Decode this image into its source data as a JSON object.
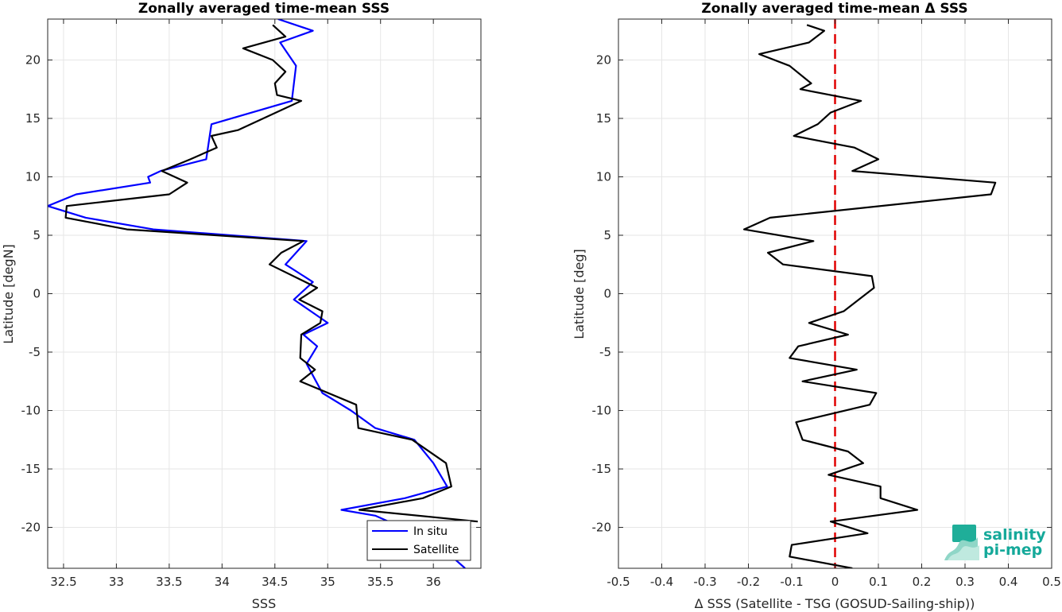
{
  "chart_data": [
    {
      "type": "line",
      "title": "Zonally averaged time-mean SSS",
      "xlabel": "SSS",
      "ylabel": "Latitude [degN]",
      "xlim": [
        32.35,
        36.45
      ],
      "ylim": [
        -23.5,
        23.5
      ],
      "xticks": [
        "32.5",
        "33",
        "33.5",
        "34",
        "34.5",
        "35",
        "35.5",
        "36"
      ],
      "xtick_values": [
        32.5,
        33,
        33.5,
        34,
        34.5,
        35,
        35.5,
        36
      ],
      "yticks": [
        "20",
        "15",
        "10",
        "5",
        "0",
        "-5",
        "-10",
        "-15",
        "-20"
      ],
      "ytick_values": [
        20,
        15,
        10,
        5,
        0,
        -5,
        -10,
        -15,
        -20
      ],
      "grid": true,
      "legend_position": "bottom-right",
      "series": [
        {
          "name": "In situ",
          "color": "#0000ff",
          "x": [
            34.53,
            34.86,
            34.55,
            34.7,
            34.66,
            33.9,
            33.85,
            33.42,
            33.3,
            33.32,
            32.62,
            32.35,
            32.71,
            33.35,
            34.8,
            34.6,
            34.86,
            34.68,
            34.92,
            35.0,
            34.77,
            34.9,
            34.8,
            34.89,
            34.95,
            35.22,
            35.45,
            35.82,
            36.0,
            36.13,
            35.73,
            35.13,
            35.45,
            35.7,
            36.05,
            36.3
          ],
          "y": [
            23.5,
            22.5,
            21.5,
            19.5,
            16.5,
            14.5,
            11.5,
            10.5,
            10.0,
            9.5,
            8.5,
            7.5,
            6.5,
            5.5,
            4.5,
            2.5,
            1.0,
            -0.5,
            -2.0,
            -2.5,
            -3.5,
            -4.5,
            -6.0,
            -7.5,
            -8.5,
            -10.0,
            -11.5,
            -12.5,
            -14.5,
            -16.5,
            -17.5,
            -18.5,
            -19.0,
            -20.0,
            -21.5,
            -23.5
          ]
        },
        {
          "name": "Satellite",
          "color": "#000000",
          "x": [
            34.48,
            34.6,
            34.2,
            34.48,
            34.6,
            34.5,
            34.52,
            34.75,
            34.15,
            33.9,
            33.95,
            33.7,
            33.43,
            33.67,
            33.5,
            32.53,
            32.52,
            33.1,
            34.77,
            34.56,
            34.45,
            34.9,
            34.73,
            34.95,
            34.93,
            34.75,
            34.74,
            34.88,
            34.74,
            35.27,
            35.29,
            35.8,
            36.12,
            36.17,
            35.9,
            35.3,
            36.42
          ],
          "y": [
            23.0,
            22.0,
            21.0,
            20.0,
            19.0,
            18.0,
            17.0,
            16.5,
            14.0,
            13.5,
            12.5,
            11.5,
            10.5,
            9.5,
            8.5,
            7.5,
            6.5,
            5.5,
            4.5,
            3.5,
            2.5,
            0.5,
            -0.5,
            -1.5,
            -2.5,
            -3.5,
            -5.5,
            -6.5,
            -7.5,
            -9.5,
            -11.5,
            -12.5,
            -14.5,
            -16.5,
            -17.5,
            -18.5,
            -19.5
          ]
        }
      ]
    },
    {
      "type": "line",
      "title": "Zonally averaged time-mean Δ SSS",
      "xlabel": "Δ SSS (Satellite - TSG (GOSUD-Sailing-ship))",
      "ylabel": "Latitude [deg]",
      "xlim": [
        -0.5,
        0.5
      ],
      "ylim": [
        -23.5,
        23.5
      ],
      "xticks": [
        "-0.5",
        "-0.4",
        "-0.3",
        "-0.2",
        "-0.1",
        "0",
        "0.1",
        "0.2",
        "0.3",
        "0.4",
        "0.5"
      ],
      "xtick_values": [
        -0.5,
        -0.4,
        -0.3,
        -0.2,
        -0.1,
        0,
        0.1,
        0.2,
        0.3,
        0.4,
        0.5
      ],
      "yticks": [
        "20",
        "15",
        "10",
        "5",
        "0",
        "-5",
        "-10",
        "-15",
        "-20"
      ],
      "ytick_values": [
        20,
        15,
        10,
        5,
        0,
        -5,
        -10,
        -15,
        -20
      ],
      "grid": true,
      "zero_line": {
        "x": 0,
        "color": "#e00000",
        "style": "dashed"
      },
      "series": [
        {
          "color": "#000000",
          "x": [
            -0.065,
            -0.025,
            -0.06,
            -0.175,
            -0.105,
            -0.055,
            -0.08,
            0.06,
            -0.01,
            -0.04,
            -0.095,
            0.045,
            0.1,
            0.04,
            0.37,
            0.36,
            -0.15,
            -0.21,
            -0.05,
            -0.155,
            -0.12,
            0.085,
            0.09,
            0.02,
            -0.06,
            0.03,
            -0.085,
            -0.105,
            0.05,
            -0.075,
            0.095,
            0.08,
            -0.09,
            -0.075,
            0.03,
            0.065,
            -0.015,
            0.105,
            0.105,
            0.19,
            -0.01,
            0.075,
            -0.1,
            -0.105,
            0.04
          ],
          "y": [
            23.0,
            22.5,
            21.5,
            20.5,
            19.5,
            18.0,
            17.5,
            16.5,
            15.5,
            14.5,
            13.5,
            12.5,
            11.5,
            10.5,
            9.5,
            8.5,
            6.5,
            5.5,
            4.5,
            3.5,
            2.5,
            1.5,
            0.5,
            -1.5,
            -2.5,
            -3.5,
            -4.5,
            -5.5,
            -6.5,
            -7.5,
            -8.5,
            -9.5,
            -11.0,
            -12.5,
            -13.5,
            -14.5,
            -15.5,
            -16.5,
            -17.5,
            -18.5,
            -19.5,
            -20.5,
            -21.5,
            -22.5,
            -23.5
          ]
        }
      ]
    }
  ],
  "logo": {
    "line1": "salinity",
    "line2": "pi-mep",
    "color": "#15a99a"
  }
}
